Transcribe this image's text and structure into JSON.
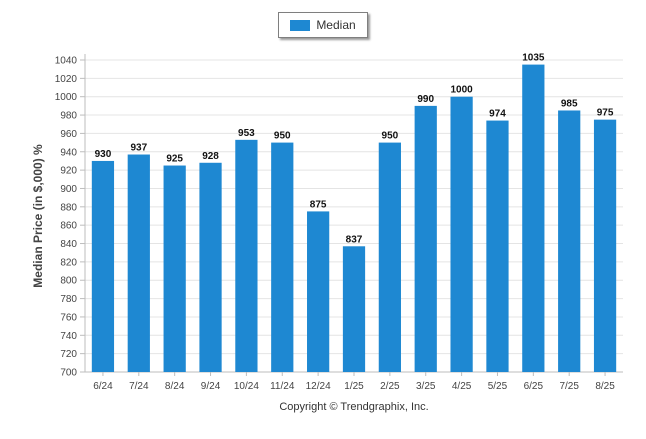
{
  "chart_data": {
    "type": "bar",
    "categories": [
      "6/24",
      "7/24",
      "8/24",
      "9/24",
      "10/24",
      "11/24",
      "12/24",
      "1/25",
      "2/25",
      "3/25",
      "4/25",
      "5/25",
      "6/25",
      "7/25",
      "8/25"
    ],
    "series": [
      {
        "name": "Median",
        "values": [
          930,
          937,
          925,
          928,
          953,
          950,
          875,
          837,
          950,
          990,
          1000,
          974,
          1035,
          985,
          975
        ]
      }
    ],
    "ylabel": "Median Price (in $,000) %",
    "ylim": [
      700,
      1040
    ],
    "ytick_step": 20,
    "grid": true,
    "legend": "top-center",
    "colors": {
      "bar": "#1e88d2"
    }
  },
  "footer": {
    "credit": "Copyright © Trendgraphix, Inc."
  }
}
